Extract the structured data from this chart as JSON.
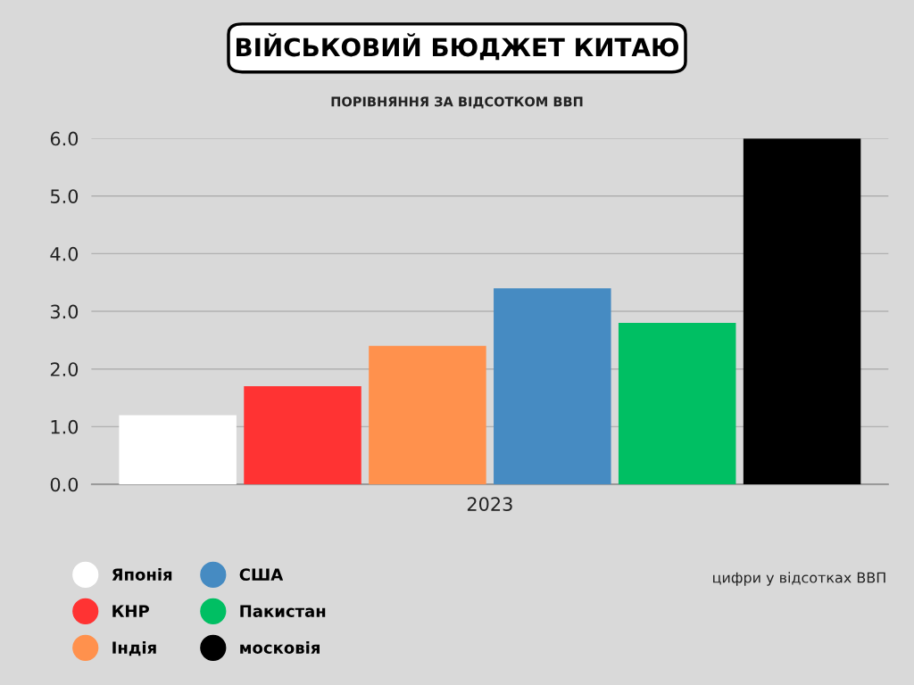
{
  "chart_data": {
    "type": "bar",
    "title": "ВІЙСЬКОВИЙ БЮДЖЕТ КИТАЮ",
    "subtitle": "ПОРІВНЯННЯ ЗА ВІДСОТКОМ ВВП",
    "categories": [
      "2023"
    ],
    "series": [
      {
        "name": "Японія",
        "color": "#ffffff",
        "values": [
          1.2
        ]
      },
      {
        "name": "КНР",
        "color": "#ff3333",
        "values": [
          1.7
        ]
      },
      {
        "name": "Індія",
        "color": "#ff914d",
        "values": [
          2.4
        ]
      },
      {
        "name": "США",
        "color": "#468bc2",
        "values": [
          3.4
        ]
      },
      {
        "name": "Пакистан",
        "color": "#00bf63",
        "values": [
          2.8
        ]
      },
      {
        "name": "московія",
        "color": "#000000",
        "values": [
          6.0
        ]
      }
    ],
    "ylim": [
      0,
      6.0
    ],
    "yticks": [
      {
        "value": 0,
        "label": "0.0"
      },
      {
        "value": 1,
        "label": "1.0"
      },
      {
        "value": 2,
        "label": "2.0"
      },
      {
        "value": 3,
        "label": "3.0"
      },
      {
        "value": 4,
        "label": "4.0"
      },
      {
        "value": 5,
        "label": "5.0"
      },
      {
        "value": 6,
        "label": "6.0"
      }
    ],
    "grid": "y",
    "legend": "bottom left",
    "annotations": [
      "цифри у відсотках ВВП"
    ]
  }
}
